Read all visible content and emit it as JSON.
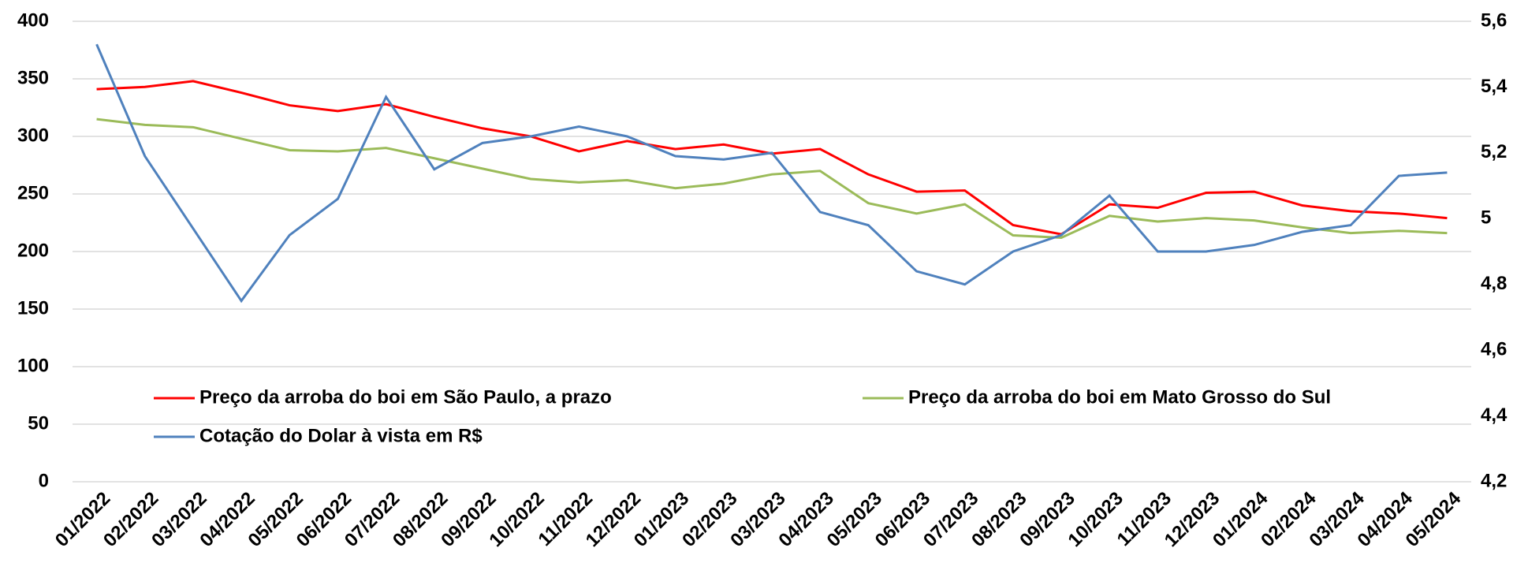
{
  "chart_data": {
    "type": "line",
    "categories": [
      "01/2022",
      "02/2022",
      "03/2022",
      "04/2022",
      "05/2022",
      "06/2022",
      "07/2022",
      "08/2022",
      "09/2022",
      "10/2022",
      "11/2022",
      "12/2022",
      "01/2023",
      "02/2023",
      "03/2023",
      "04/2023",
      "05/2023",
      "06/2023",
      "07/2023",
      "08/2023",
      "09/2023",
      "10/2023",
      "11/2023",
      "12/2023",
      "01/2024",
      "02/2024",
      "03/2024",
      "04/2024",
      "05/2024"
    ],
    "series": [
      {
        "name": "Preço da arroba do boi em São Paulo, a prazo",
        "color": "#ff0000",
        "values": [
          341,
          343,
          348,
          338,
          327,
          322,
          328,
          317,
          307,
          300,
          287,
          296,
          289,
          293,
          285,
          289,
          267,
          252,
          253,
          223,
          215,
          241,
          238,
          251,
          252,
          240,
          235,
          233,
          229
        ]
      },
      {
        "name": "Preço da arroba do boi em Mato Grosso do Sul",
        "color": "#9bbb59",
        "values": [
          315,
          310,
          308,
          298,
          288,
          287,
          290,
          281,
          272,
          263,
          260,
          262,
          255,
          259,
          267,
          270,
          242,
          233,
          241,
          214,
          212,
          231,
          226,
          229,
          227,
          221,
          216,
          218,
          216
        ]
      },
      {
        "name": "Cotação do Dolar à vista em R$",
        "color": "#4f81bd",
        "axis": "y2",
        "values": [
          5.53,
          5.19,
          4.97,
          4.75,
          4.95,
          5.06,
          5.37,
          5.15,
          5.23,
          5.25,
          5.28,
          5.25,
          5.19,
          5.18,
          5.2,
          5.02,
          4.98,
          4.84,
          4.8,
          4.9,
          4.95,
          5.07,
          4.9,
          4.9,
          4.92,
          4.96,
          4.98,
          5.13,
          5.14
        ]
      }
    ],
    "ylim": [
      0,
      400
    ],
    "yticks": [
      0,
      50,
      100,
      150,
      200,
      250,
      300,
      350,
      400
    ],
    "y2lim": [
      4.2,
      5.6
    ],
    "y2ticks": [
      {
        "value": 4.2,
        "label": "4,2"
      },
      {
        "value": 4.4,
        "label": "4,4"
      },
      {
        "value": 4.6,
        "label": "4,6"
      },
      {
        "value": 4.8,
        "label": "4,8"
      },
      5,
      {
        "value": 5.2,
        "label": "5,2"
      },
      {
        "value": 5.4,
        "label": "5,4"
      },
      {
        "value": 5.6,
        "label": "5,6"
      }
    ],
    "grid": true
  }
}
